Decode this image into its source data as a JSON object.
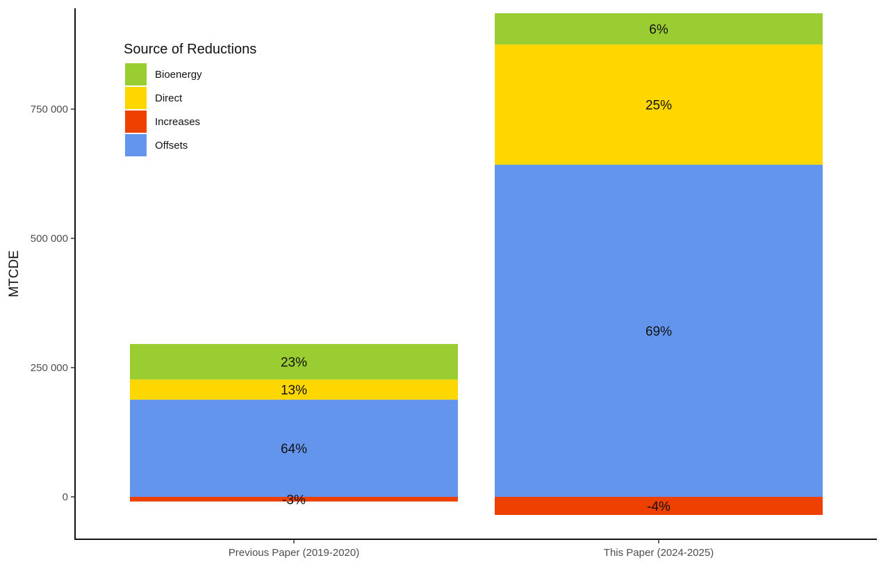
{
  "chart_data": {
    "type": "bar",
    "stacked": true,
    "title": "",
    "xlabel": "",
    "ylabel": "MTCDE",
    "ylim": [
      -82000,
      945000
    ],
    "yticks": [
      0,
      250000,
      500000,
      750000
    ],
    "ytick_labels": [
      "0",
      "250 000",
      "500 000",
      "750 000"
    ],
    "categories": [
      "Previous Paper (2019-2020)",
      "This Paper (2024-2025)"
    ],
    "legend": {
      "title": "Source of Reductions",
      "placement": "top-left",
      "entries": [
        "Bioenergy",
        "Direct",
        "Increases",
        "Offsets"
      ]
    },
    "colors": {
      "Bioenergy": "#9ACD32",
      "Direct": "#FFD700",
      "Increases": "#EE4000",
      "Offsets": "#6495ED"
    },
    "series": [
      {
        "name": "Offsets",
        "values": [
          188000,
          642500
        ],
        "labels": [
          "64%",
          "69%"
        ]
      },
      {
        "name": "Direct",
        "values": [
          39000,
          232500
        ],
        "labels": [
          "13%",
          "25%"
        ]
      },
      {
        "name": "Bioenergy",
        "values": [
          68700,
          60500
        ],
        "labels": [
          "23%",
          "6%"
        ]
      },
      {
        "name": "Increases",
        "values": [
          -9000,
          -35000
        ],
        "labels": [
          "-3%",
          "-4%"
        ]
      }
    ],
    "grid": false
  }
}
